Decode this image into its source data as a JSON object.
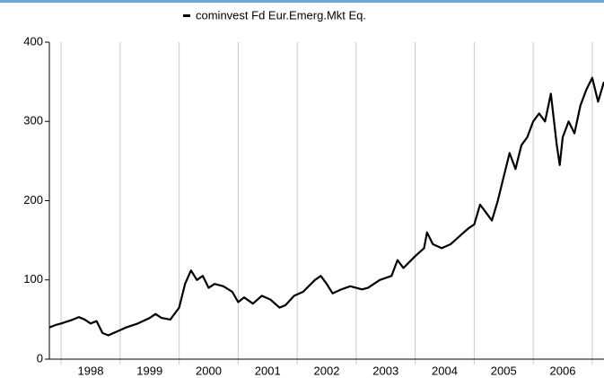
{
  "chart_data": {
    "type": "line",
    "legend": "cominvest Fd Eur.Emerg.Mkt Eq.",
    "series": [
      {
        "name": "cominvest Fd Eur.Emerg.Mkt Eq.",
        "color": "#000000",
        "x": [
          1997.8,
          1997.9,
          1998.0,
          1998.2,
          1998.3,
          1998.4,
          1998.5,
          1998.6,
          1998.7,
          1998.8,
          1998.95,
          1999.1,
          1999.3,
          1999.5,
          1999.6,
          1999.7,
          1999.85,
          2000.0,
          2000.1,
          2000.2,
          2000.3,
          2000.4,
          2000.5,
          2000.6,
          2000.75,
          2000.9,
          2001.0,
          2001.1,
          2001.25,
          2001.4,
          2001.55,
          2001.7,
          2001.8,
          2001.95,
          2002.1,
          2002.3,
          2002.4,
          2002.5,
          2002.6,
          2002.75,
          2002.9,
          2003.0,
          2003.1,
          2003.2,
          2003.4,
          2003.6,
          2003.7,
          2003.8,
          2004.0,
          2004.15,
          2004.2,
          2004.3,
          2004.45,
          2004.6,
          2004.75,
          2004.9,
          2005.0,
          2005.1,
          2005.2,
          2005.3,
          2005.4,
          2005.5,
          2005.6,
          2005.7,
          2005.8,
          2005.9,
          2006.0,
          2006.1,
          2006.2,
          2006.3,
          2006.4,
          2006.45,
          2006.5,
          2006.6,
          2006.7,
          2006.8,
          2006.9,
          2007.0,
          2007.1,
          2007.2
        ],
        "values": [
          40,
          43,
          45,
          50,
          53,
          50,
          45,
          48,
          33,
          30,
          35,
          40,
          45,
          52,
          57,
          52,
          50,
          65,
          95,
          112,
          100,
          105,
          90,
          95,
          92,
          85,
          72,
          78,
          70,
          80,
          75,
          65,
          68,
          80,
          85,
          100,
          105,
          95,
          83,
          88,
          92,
          90,
          88,
          90,
          100,
          105,
          125,
          115,
          130,
          140,
          160,
          145,
          140,
          145,
          155,
          165,
          170,
          195,
          185,
          175,
          200,
          230,
          260,
          240,
          270,
          280,
          300,
          310,
          300,
          335,
          270,
          245,
          280,
          300,
          285,
          320,
          340,
          355,
          325,
          350
        ]
      }
    ],
    "xlim": [
      1997.8,
      2007.2
    ],
    "xticks": [
      {
        "value": 1998.5,
        "label": "1998"
      },
      {
        "value": 1999.5,
        "label": "1999"
      },
      {
        "value": 2000.5,
        "label": "2000"
      },
      {
        "value": 2001.5,
        "label": "2001"
      },
      {
        "value": 2002.5,
        "label": "2002"
      },
      {
        "value": 2003.5,
        "label": "2003"
      },
      {
        "value": 2004.5,
        "label": "2004"
      },
      {
        "value": 2005.5,
        "label": "2005"
      },
      {
        "value": 2006.5,
        "label": "2006"
      }
    ],
    "xgrid": [
      1998,
      1999,
      2000,
      2001,
      2002,
      2003,
      2004,
      2005,
      2006,
      2007
    ],
    "ylim": [
      0,
      400
    ],
    "yticks": [
      0,
      100,
      200,
      300,
      400
    ]
  }
}
